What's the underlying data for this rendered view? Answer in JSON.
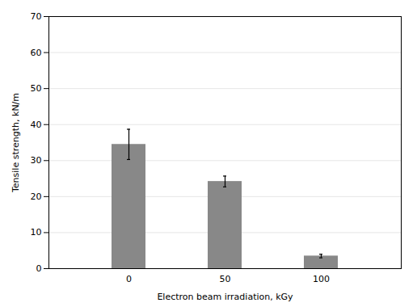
{
  "chart_data": {
    "type": "bar",
    "categories": [
      "0",
      "50",
      "100"
    ],
    "values": [
      34.5,
      24.2,
      3.5
    ],
    "errors": [
      4.2,
      1.5,
      0.5
    ],
    "color": "#888888",
    "xlabel": "Electron beam irradiation, kGy",
    "ylabel": "Tensile strength, kN/m",
    "ylim": [
      0,
      70
    ],
    "yticks": [
      0,
      10,
      20,
      30,
      40,
      50,
      60,
      70
    ],
    "grid": true
  }
}
